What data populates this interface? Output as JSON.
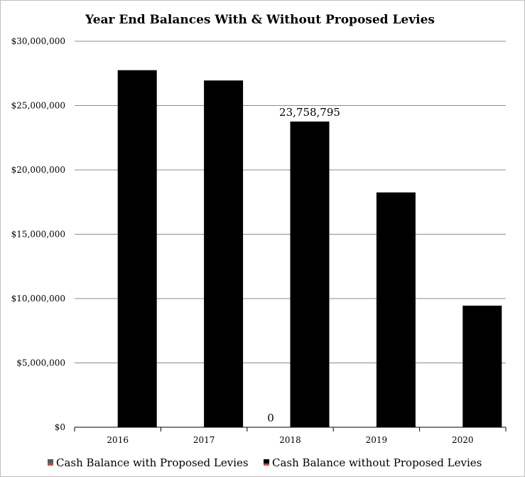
{
  "chart_data": {
    "type": "bar",
    "title": "Year End Balances With & Without Proposed Levies",
    "xlabel": "",
    "ylabel": "",
    "categories": [
      "2016",
      "2017",
      "2018",
      "2019",
      "2020"
    ],
    "series": [
      {
        "name": "Cash Balance with Proposed Levies",
        "values": [
          0,
          0,
          0,
          0,
          0
        ],
        "color": "#595959"
      },
      {
        "name": "Cash Balance without Proposed Levies",
        "values": [
          27750000,
          26950000,
          23758795,
          18250000,
          9450000
        ],
        "color": "#000000"
      }
    ],
    "ylim": [
      0,
      30000000
    ],
    "yticks": [
      "$0",
      "$5,000,000",
      "$10,000,000",
      "$15,000,000",
      "$20,000,000",
      "$25,000,000",
      "$30,000,000"
    ],
    "ytick_values": [
      0,
      5000000,
      10000000,
      15000000,
      20000000,
      25000000,
      30000000
    ],
    "data_labels": [
      {
        "series": 0,
        "category": "2018",
        "text": "0"
      },
      {
        "series": 1,
        "category": "2018",
        "text": "23,758,795"
      }
    ],
    "grid": true,
    "legend_position": "bottom"
  }
}
